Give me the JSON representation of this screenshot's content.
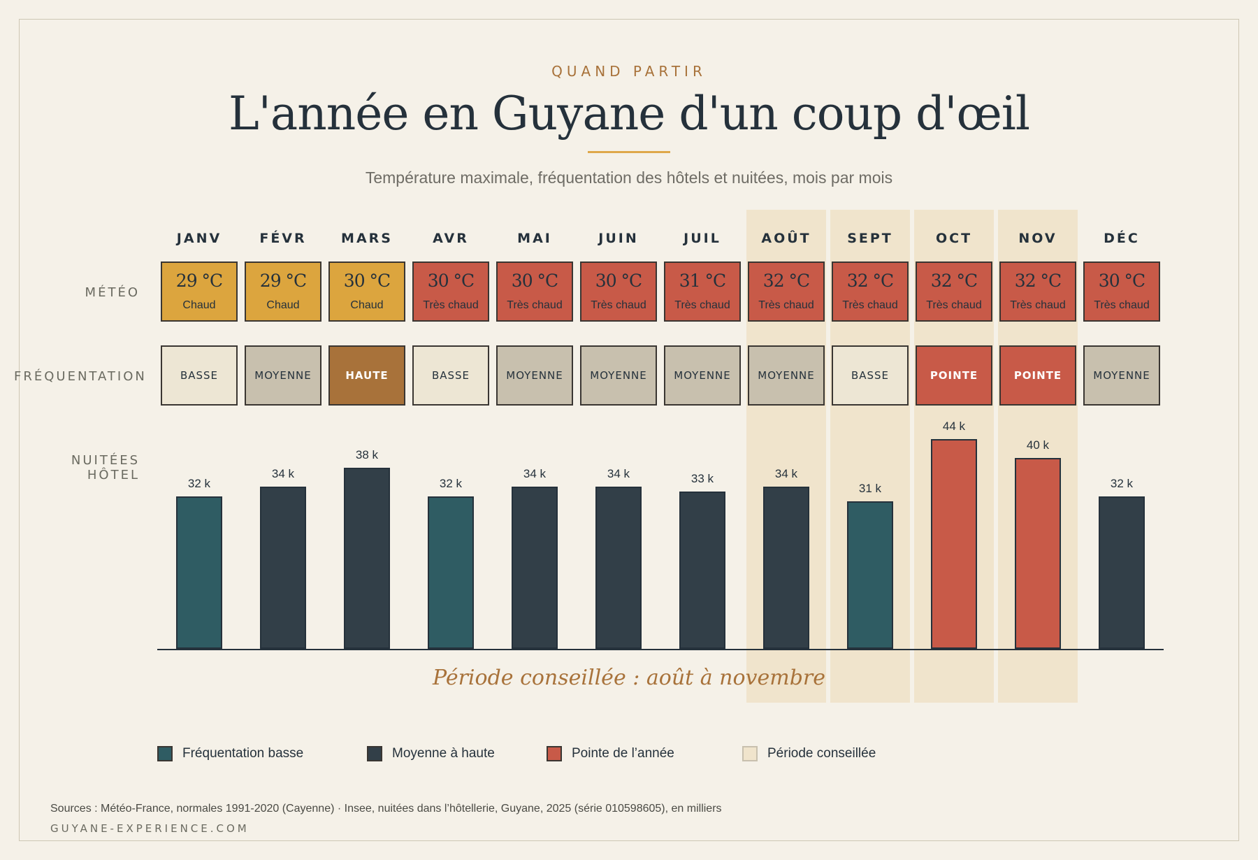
{
  "header": {
    "kicker": "QUAND PARTIR",
    "title": "L'année en Guyane d'un coup d'œil",
    "subtitle": "Température maximale, fréquentation des hôtels et nuitées, mois par mois"
  },
  "row_labels": {
    "meteo": "MÉTÉO",
    "frequentation": "FRÉQUENTATION",
    "nuitees": "NUITÉES HÔTEL"
  },
  "colors": {
    "chaud": "#dca53e",
    "tres_chaud": "#c85a48",
    "basse": "#ede6d4",
    "moyenne": "#c8c0ae",
    "haute": "#a8723a",
    "pointe": "#c85a48",
    "bar_basse": "#2f5c63",
    "bar_moyenne": "#323f48",
    "bar_pointe": "#c85a48",
    "periode": "#f0e4cc"
  },
  "chart_data": {
    "type": "bar",
    "categories": [
      "JANV",
      "FÉVR",
      "MARS",
      "AVR",
      "MAI",
      "JUIN",
      "JUIL",
      "AOÛT",
      "SEPT",
      "OCT",
      "NOV",
      "DÉC"
    ],
    "series": [
      {
        "values": [
          32,
          34,
          38,
          32,
          34,
          34,
          33,
          34,
          31,
          44,
          40,
          32
        ]
      }
    ],
    "value_labels": [
      "32 k",
      "34 k",
      "38 k",
      "32 k",
      "34 k",
      "34 k",
      "33 k",
      "34 k",
      "31 k",
      "44 k",
      "40 k",
      "32 k"
    ],
    "meteo": {
      "temps": [
        "29 °C",
        "29 °C",
        "30 °C",
        "30 °C",
        "30 °C",
        "30 °C",
        "31 °C",
        "32 °C",
        "32 °C",
        "32 °C",
        "32 °C",
        "30 °C"
      ],
      "descriptions": [
        "Chaud",
        "Chaud",
        "Chaud",
        "Très chaud",
        "Très chaud",
        "Très chaud",
        "Très chaud",
        "Très chaud",
        "Très chaud",
        "Très chaud",
        "Très chaud",
        "Très chaud"
      ]
    },
    "frequentation": [
      "BASSE",
      "MOYENNE",
      "HAUTE",
      "BASSE",
      "MOYENNE",
      "MOYENNE",
      "MOYENNE",
      "MOYENNE",
      "BASSE",
      "POINTE",
      "POINTE",
      "MOYENNE"
    ],
    "highlighted_months": [
      "AOÛT",
      "SEPT",
      "OCT",
      "NOV"
    ],
    "ylim": [
      0,
      44
    ],
    "grid": false,
    "legend_placement": "bottom"
  },
  "period_note": "Période conseillée : août à novembre",
  "legend": [
    {
      "label": "Fréquentation basse",
      "color": "#2f5c63"
    },
    {
      "label": "Moyenne à haute",
      "color": "#323f48"
    },
    {
      "label": "Pointe de l’année",
      "color": "#c85a48"
    },
    {
      "label": "Période conseillée",
      "color": "#f0e4cc"
    }
  ],
  "footer": {
    "sources": "Sources : Météo-France, normales 1991-2020 (Cayenne) · Insee, nuitées dans l’hôtellerie, Guyane, 2025 (série 010598605), en milliers",
    "site": "GUYANE-EXPERIENCE.COM"
  }
}
